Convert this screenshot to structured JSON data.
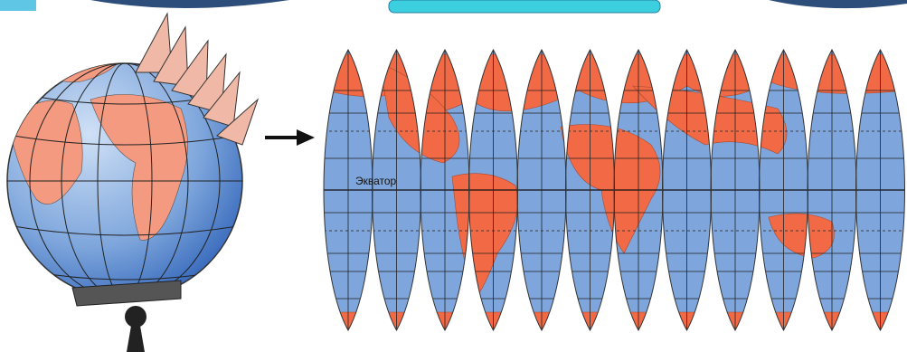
{
  "label": "Экватор"
}
